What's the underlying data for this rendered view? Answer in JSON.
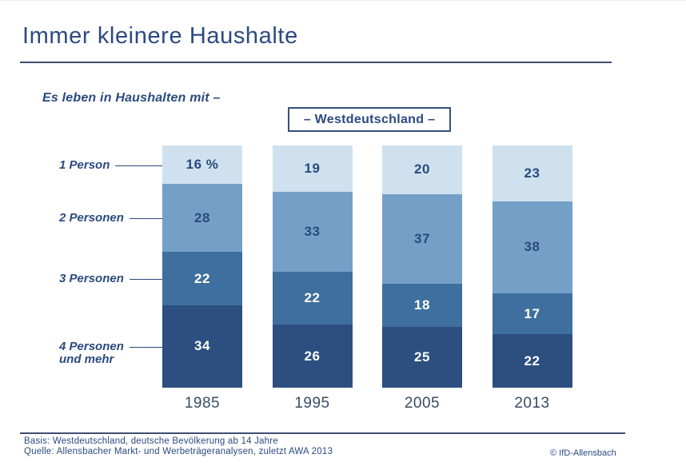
{
  "page": {
    "title": "Immer kleinere Haushalte",
    "subtitle": "Es leben in Haushalten mit –",
    "region": "– Westdeutschland –"
  },
  "chart_data": {
    "type": "bar",
    "stacked": true,
    "orientation": "vertical",
    "unit": "percent",
    "ylim": [
      0,
      100
    ],
    "grid": false,
    "legend_position": "left-callout-labels",
    "categories": [
      "1985",
      "1995",
      "2005",
      "2013"
    ],
    "series": [
      {
        "name": "1 Person",
        "values": [
          16,
          19,
          20,
          23
        ],
        "display": [
          "16 %",
          "19",
          "20",
          "23"
        ],
        "color": "#cfe1ee",
        "text_color": "#2a4a7c"
      },
      {
        "name": "2 Personen",
        "values": [
          28,
          33,
          37,
          38
        ],
        "display": [
          "28",
          "33",
          "37",
          "38"
        ],
        "color": "#74a0c8",
        "text_color": "#2a4a7c"
      },
      {
        "name": "3 Personen",
        "values": [
          22,
          22,
          18,
          17
        ],
        "display": [
          "22",
          "22",
          "18",
          "17"
        ],
        "color": "#3e6f9e",
        "text_color": "#ffffff"
      },
      {
        "name": "4 Personen und mehr",
        "values": [
          34,
          26,
          25,
          22
        ],
        "display": [
          "34",
          "26",
          "25",
          "22"
        ],
        "color": "#2d4f80",
        "text_color": "#ffffff"
      }
    ],
    "row_labels": [
      "1 Person",
      "2 Personen",
      "3 Personen",
      "4 Personen\nund mehr"
    ]
  },
  "footer": {
    "basis": "Basis: Westdeutschland, deutsche Bevölkerung ab 14 Jahre",
    "quelle": "Quelle: Allensbacher Markt- und Werbeträgeranalysen, zuletzt AWA 2013",
    "copyright": "© IfD-Allensbach"
  },
  "colors": {
    "accent_text": "#2b4a80",
    "rule_line": "#3d4e6e",
    "segment_1": "#cfe1ee",
    "segment_2": "#74a0c8",
    "segment_3": "#3e6f9e",
    "segment_4": "#2d4f80"
  }
}
